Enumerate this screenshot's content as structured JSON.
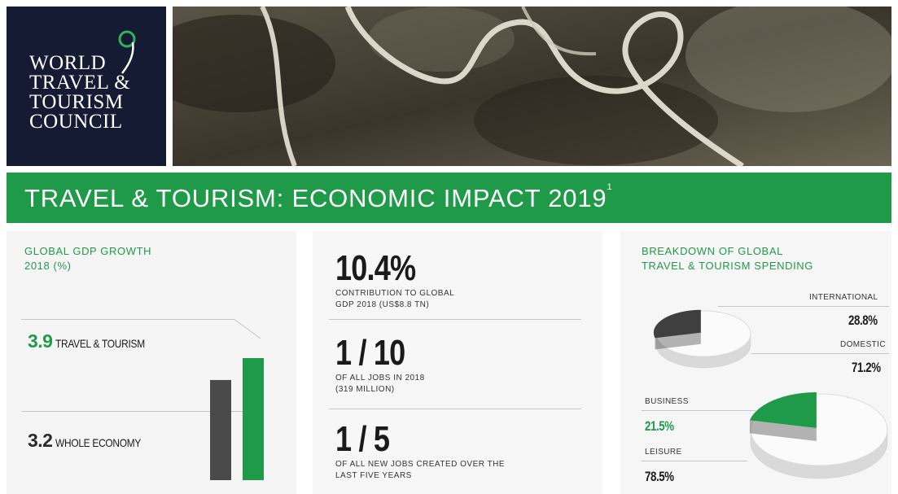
{
  "logo": {
    "line1": "WORLD",
    "line2": "TRAVEL &",
    "line3": "TOURISM",
    "line4": "COUNCIL"
  },
  "banner": {
    "title": "TRAVEL & TOURISM: ECONOMIC IMPACT 2019",
    "footnote": "1"
  },
  "gdp": {
    "title_line1": "GLOBAL GDP GROWTH",
    "title_line2": "2018 (%)",
    "travel_value": "3.9",
    "travel_label": "TRAVEL & TOURISM",
    "economy_value": "3.2",
    "economy_label": "WHOLE ECONOMY"
  },
  "chart_data": {
    "type": "bar",
    "title": "GLOBAL GDP GROWTH 2018 (%)",
    "categories": [
      "WHOLE ECONOMY",
      "TRAVEL & TOURISM"
    ],
    "values": [
      3.2,
      3.9
    ],
    "colors": [
      "#4a4a4a",
      "#1f9a48"
    ]
  },
  "stats": {
    "s1_big": "10.4%",
    "s1_desc1": "CONTRIBUTION TO GLOBAL",
    "s1_desc2": "GDP 2018 (US$8.8 TN)",
    "s2_big": "1 / 10",
    "s2_desc1": "OF ALL JOBS IN 2018",
    "s2_desc2": "(319 MILLION)",
    "s3_big": "1 / 5",
    "s3_desc1": "OF ALL NEW JOBS CREATED OVER THE",
    "s3_desc2": "LAST FIVE YEARS"
  },
  "breakdown": {
    "title_line1": "BREAKDOWN OF GLOBAL",
    "title_line2": "TRAVEL & TOURISM SPENDING",
    "international_label": "INTERNATIONAL",
    "international_value": "28.8%",
    "domestic_label": "DOMESTIC",
    "domestic_value": "71.2%",
    "business_label": "BUSINESS",
    "business_value": "21.5%",
    "leisure_label": "LEISURE",
    "leisure_value": "78.5%",
    "pie1": {
      "highlight_fraction": 0.288,
      "highlight_color": "#3f3f3f"
    },
    "pie2": {
      "highlight_fraction": 0.215,
      "highlight_color": "#1f9a48"
    }
  },
  "colors": {
    "navy": "#141b33",
    "green": "#1f9a48",
    "dark_bar": "#4a4a4a"
  }
}
